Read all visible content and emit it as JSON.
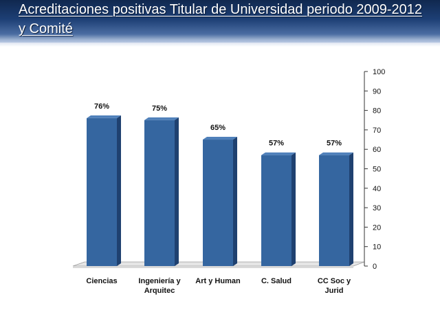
{
  "title": "Acreditaciones positivas Titular de Universidad periodo 2009-2012 y Comité",
  "chart_data": {
    "type": "bar",
    "title": "Acreditaciones positivas Titular de Universidad periodo 2009-2012 y Comité",
    "categories": [
      [
        "Ciencias"
      ],
      [
        "Ingeniería y",
        "Arquitec"
      ],
      [
        "Art y Human"
      ],
      [
        "C. Salud"
      ],
      [
        "CC Soc  y",
        "Jurid"
      ]
    ],
    "values": [
      76,
      75,
      65,
      57,
      57
    ],
    "data_labels": [
      "76%",
      "75%",
      "65%",
      "57%",
      "57%"
    ],
    "ylim": [
      0,
      100
    ],
    "yticks": [
      0,
      10,
      20,
      30,
      40,
      50,
      60,
      70,
      80,
      90,
      100
    ],
    "y_axis_side": "right",
    "grid": false,
    "legend": "none",
    "colors": {
      "bar_front": "#3566a0",
      "bar_side": "#1f4170",
      "bar_top": "#4f80ba",
      "floor": "#e6e6e6"
    }
  }
}
